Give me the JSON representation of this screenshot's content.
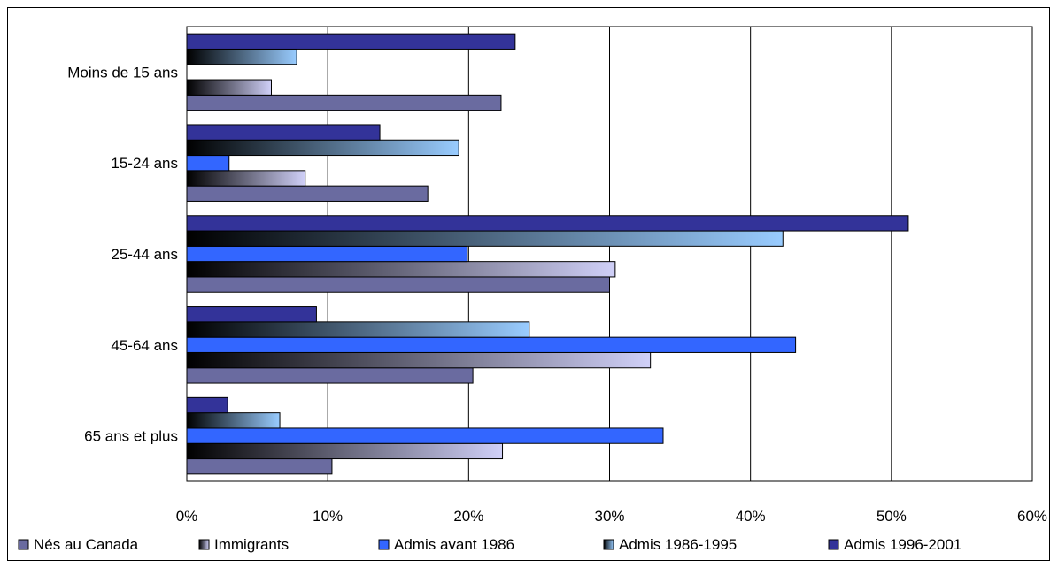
{
  "chart_data": {
    "type": "bar",
    "orientation": "horizontal",
    "categories": [
      "Moins de 15 ans",
      "15-24 ans",
      "25-44 ans",
      "45-64 ans",
      "65 ans et plus"
    ],
    "series": [
      {
        "name": "Nés au Canada",
        "values": [
          22.3,
          17.1,
          30.0,
          20.3,
          10.3
        ],
        "color": "#6A6BA0",
        "gradient": false
      },
      {
        "name": "Immigrants",
        "values": [
          6.0,
          8.4,
          30.4,
          32.9,
          22.4
        ],
        "color": "#D0D0F8",
        "gradient": true
      },
      {
        "name": "Admis avant 1986",
        "values": [
          0,
          3.0,
          19.9,
          43.2,
          33.8
        ],
        "color": "#3366FF",
        "gradient": false
      },
      {
        "name": "Admis 1986-1995",
        "values": [
          7.8,
          19.3,
          42.3,
          24.3,
          6.6
        ],
        "color": "#99CCFF",
        "gradient": true
      },
      {
        "name": "Admis 1996-2001",
        "values": [
          23.3,
          13.7,
          51.2,
          9.2,
          2.9
        ],
        "color": "#333399",
        "gradient": false
      }
    ],
    "xlim": [
      0,
      60
    ],
    "xticks": [
      "0%",
      "10%",
      "20%",
      "30%",
      "40%",
      "50%",
      "60%"
    ],
    "grid": true,
    "legend_position": "bottom"
  }
}
